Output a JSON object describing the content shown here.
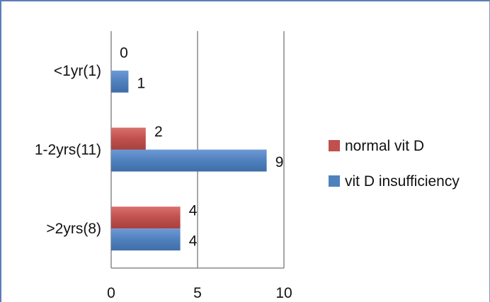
{
  "chart_data": {
    "type": "bar",
    "orientation": "horizontal",
    "categories": [
      "<1yr(1)",
      "1-2yrs(11)",
      ">2yrs(8)"
    ],
    "series": [
      {
        "name": "normal vit D",
        "values": [
          0,
          2,
          4
        ],
        "color": "#c0504d"
      },
      {
        "name": "vit D insufficiency",
        "values": [
          1,
          9,
          4
        ],
        "color": "#4f81bd"
      }
    ],
    "xlim": [
      0,
      10
    ],
    "xticks": [
      0,
      5,
      10
    ],
    "grid": true,
    "legend_position": "right"
  }
}
